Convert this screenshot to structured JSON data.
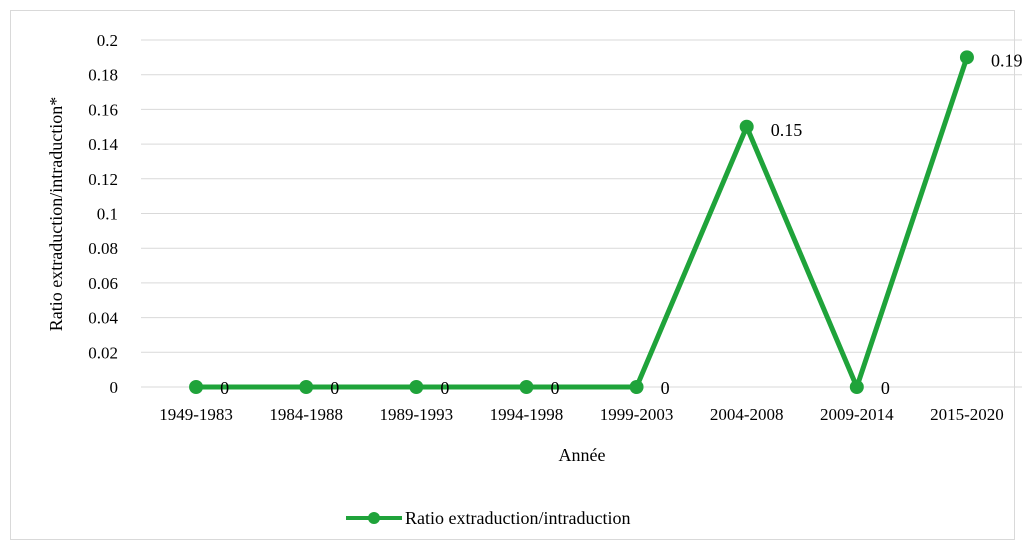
{
  "chart_data": {
    "type": "line",
    "title": "",
    "xlabel": "Année",
    "ylabel": "Ratio extraduction/intraduction*",
    "categories": [
      "1949-1983",
      "1984-1988",
      "1989-1993",
      "1994-1998",
      "1999-2003",
      "2004-2008",
      "2009-2014",
      "2015-2020"
    ],
    "series": [
      {
        "name": "Ratio extraduction/intraduction",
        "values": [
          0,
          0,
          0,
          0,
          0,
          0.15,
          0,
          0.19
        ],
        "data_labels": [
          "0",
          "0",
          "0",
          "0",
          "0",
          "0.15",
          "0",
          "0.19"
        ],
        "color": "#1fa33a"
      }
    ],
    "ylim": [
      0,
      0.2
    ],
    "yticks": [
      "0",
      "0.02",
      "0.04",
      "0.06",
      "0.08",
      "0.1",
      "0.12",
      "0.14",
      "0.16",
      "0.18",
      "0.2"
    ],
    "grid": true,
    "legend_position": "bottom",
    "gridline_color": "#d9d9d9"
  }
}
